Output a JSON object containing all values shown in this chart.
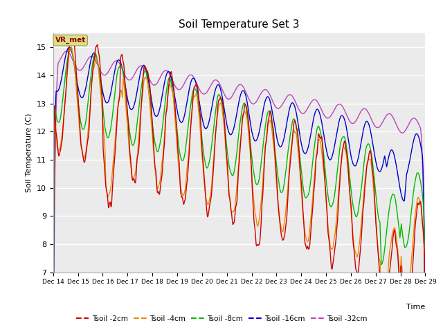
{
  "title": "Soil Temperature Set 3",
  "xlabel": "Time",
  "ylabel": "Soil Temperature (C)",
  "ylim": [
    7.0,
    15.5
  ],
  "yticks": [
    7.0,
    8.0,
    9.0,
    10.0,
    11.0,
    12.0,
    13.0,
    14.0,
    15.0
  ],
  "x_tick_labels": [
    "Dec 14",
    "Dec 15",
    "Dec 16",
    "Dec 17",
    "Dec 18",
    "Dec 19",
    "Dec 20",
    "Dec 21",
    "Dec 22",
    "Dec 23",
    "Dec 24",
    "Dec 25",
    "Dec 26",
    "Dec 27",
    "Dec 28",
    "Dec 29"
  ],
  "series": {
    "Tsoil -2cm": {
      "color": "#cc0000",
      "lw": 1.0
    },
    "Tsoil -4cm": {
      "color": "#ee8800",
      "lw": 1.0
    },
    "Tsoil -8cm": {
      "color": "#00bb00",
      "lw": 1.0
    },
    "Tsoil -16cm": {
      "color": "#0000cc",
      "lw": 1.0
    },
    "Tsoil -32cm": {
      "color": "#bb44bb",
      "lw": 1.0
    }
  },
  "legend_box_color": "#dddd88",
  "legend_box_text": "VR_met",
  "plot_bg_color": "#ebebeb"
}
